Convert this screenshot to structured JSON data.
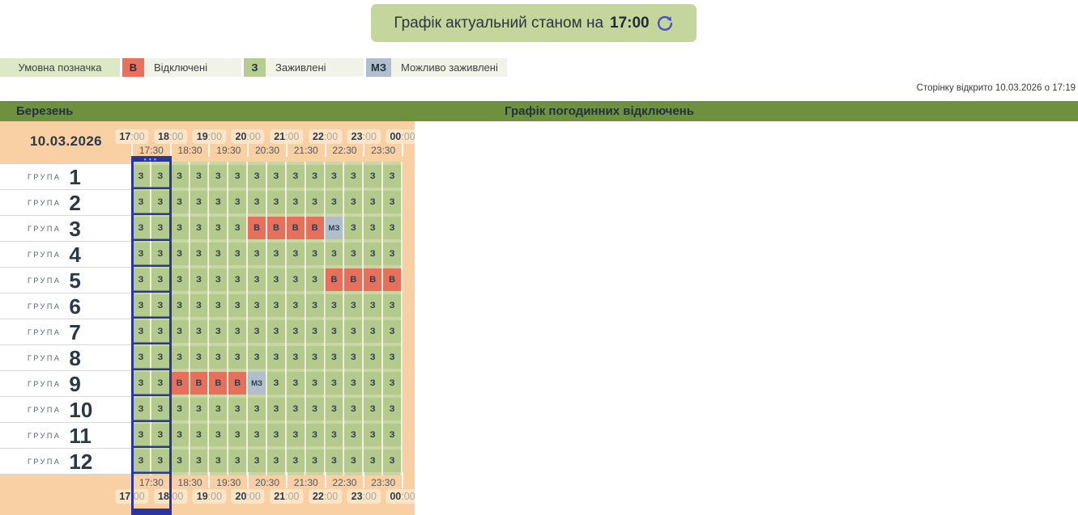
{
  "banner": {
    "text": "Графік актуальний станом на",
    "time": "17:00",
    "refresh_icon": "refresh"
  },
  "legend": {
    "title": "Умовна позначка",
    "items": [
      {
        "code": "В",
        "label": "Відключені"
      },
      {
        "code": "З",
        "label": "Заживлені"
      },
      {
        "code": "МЗ",
        "label": "Можливо заживлені"
      }
    ]
  },
  "page_opened": "Сторінку відкрито 10.03.2026 о 17:19",
  "band": {
    "month": "Березень",
    "title": "Графік погодинних відключень"
  },
  "schedule": {
    "date": "10.03.2026",
    "hours": [
      {
        "h": "17",
        "m": ":00"
      },
      {
        "h": "18",
        "m": ":00"
      },
      {
        "h": "19",
        "m": ":00"
      },
      {
        "h": "20",
        "m": ":00"
      },
      {
        "h": "21",
        "m": ":00"
      },
      {
        "h": "22",
        "m": ":00"
      },
      {
        "h": "23",
        "m": ":00"
      },
      {
        "h": "00",
        "m": ":00"
      }
    ],
    "half_hours": [
      "17:30",
      "18:30",
      "19:30",
      "20:30",
      "21:30",
      "22:30",
      "23:30"
    ],
    "current_marker": "•••",
    "group_label": "ГРУПА",
    "groups": [
      {
        "number": "1",
        "cells": [
          "З",
          "З",
          "З",
          "З",
          "З",
          "З",
          "З",
          "З",
          "З",
          "З",
          "З",
          "З",
          "З",
          "З"
        ]
      },
      {
        "number": "2",
        "cells": [
          "З",
          "З",
          "З",
          "З",
          "З",
          "З",
          "З",
          "З",
          "З",
          "З",
          "З",
          "З",
          "З",
          "З"
        ]
      },
      {
        "number": "3",
        "cells": [
          "З",
          "З",
          "З",
          "З",
          "З",
          "З",
          "В",
          "В",
          "В",
          "В",
          "МЗ",
          "З",
          "З",
          "З"
        ]
      },
      {
        "number": "4",
        "cells": [
          "З",
          "З",
          "З",
          "З",
          "З",
          "З",
          "З",
          "З",
          "З",
          "З",
          "З",
          "З",
          "З",
          "З"
        ]
      },
      {
        "number": "5",
        "cells": [
          "З",
          "З",
          "З",
          "З",
          "З",
          "З",
          "З",
          "З",
          "З",
          "З",
          "В",
          "В",
          "В",
          "В"
        ]
      },
      {
        "number": "6",
        "cells": [
          "З",
          "З",
          "З",
          "З",
          "З",
          "З",
          "З",
          "З",
          "З",
          "З",
          "З",
          "З",
          "З",
          "З"
        ]
      },
      {
        "number": "7",
        "cells": [
          "З",
          "З",
          "З",
          "З",
          "З",
          "З",
          "З",
          "З",
          "З",
          "З",
          "З",
          "З",
          "З",
          "З"
        ]
      },
      {
        "number": "8",
        "cells": [
          "З",
          "З",
          "З",
          "З",
          "З",
          "З",
          "З",
          "З",
          "З",
          "З",
          "З",
          "З",
          "З",
          "З"
        ]
      },
      {
        "number": "9",
        "cells": [
          "З",
          "З",
          "В",
          "В",
          "В",
          "В",
          "МЗ",
          "З",
          "З",
          "З",
          "З",
          "З",
          "З",
          "З"
        ]
      },
      {
        "number": "10",
        "cells": [
          "З",
          "З",
          "З",
          "З",
          "З",
          "З",
          "З",
          "З",
          "З",
          "З",
          "З",
          "З",
          "З",
          "З"
        ]
      },
      {
        "number": "11",
        "cells": [
          "З",
          "З",
          "З",
          "З",
          "З",
          "З",
          "З",
          "З",
          "З",
          "З",
          "З",
          "З",
          "З",
          "З"
        ]
      },
      {
        "number": "12",
        "cells": [
          "З",
          "З",
          "З",
          "З",
          "З",
          "З",
          "З",
          "З",
          "З",
          "З",
          "З",
          "З",
          "З",
          "З"
        ]
      }
    ]
  },
  "colors": {
    "energized": "#b4ca8c",
    "disconnected": "#e7705c",
    "maybe_energized": "#b1becb",
    "accent_navy": "#2b35a2",
    "band_olive": "#6f903f",
    "banner_green": "#c4d69b",
    "table_peach": "#f9d0a4"
  }
}
